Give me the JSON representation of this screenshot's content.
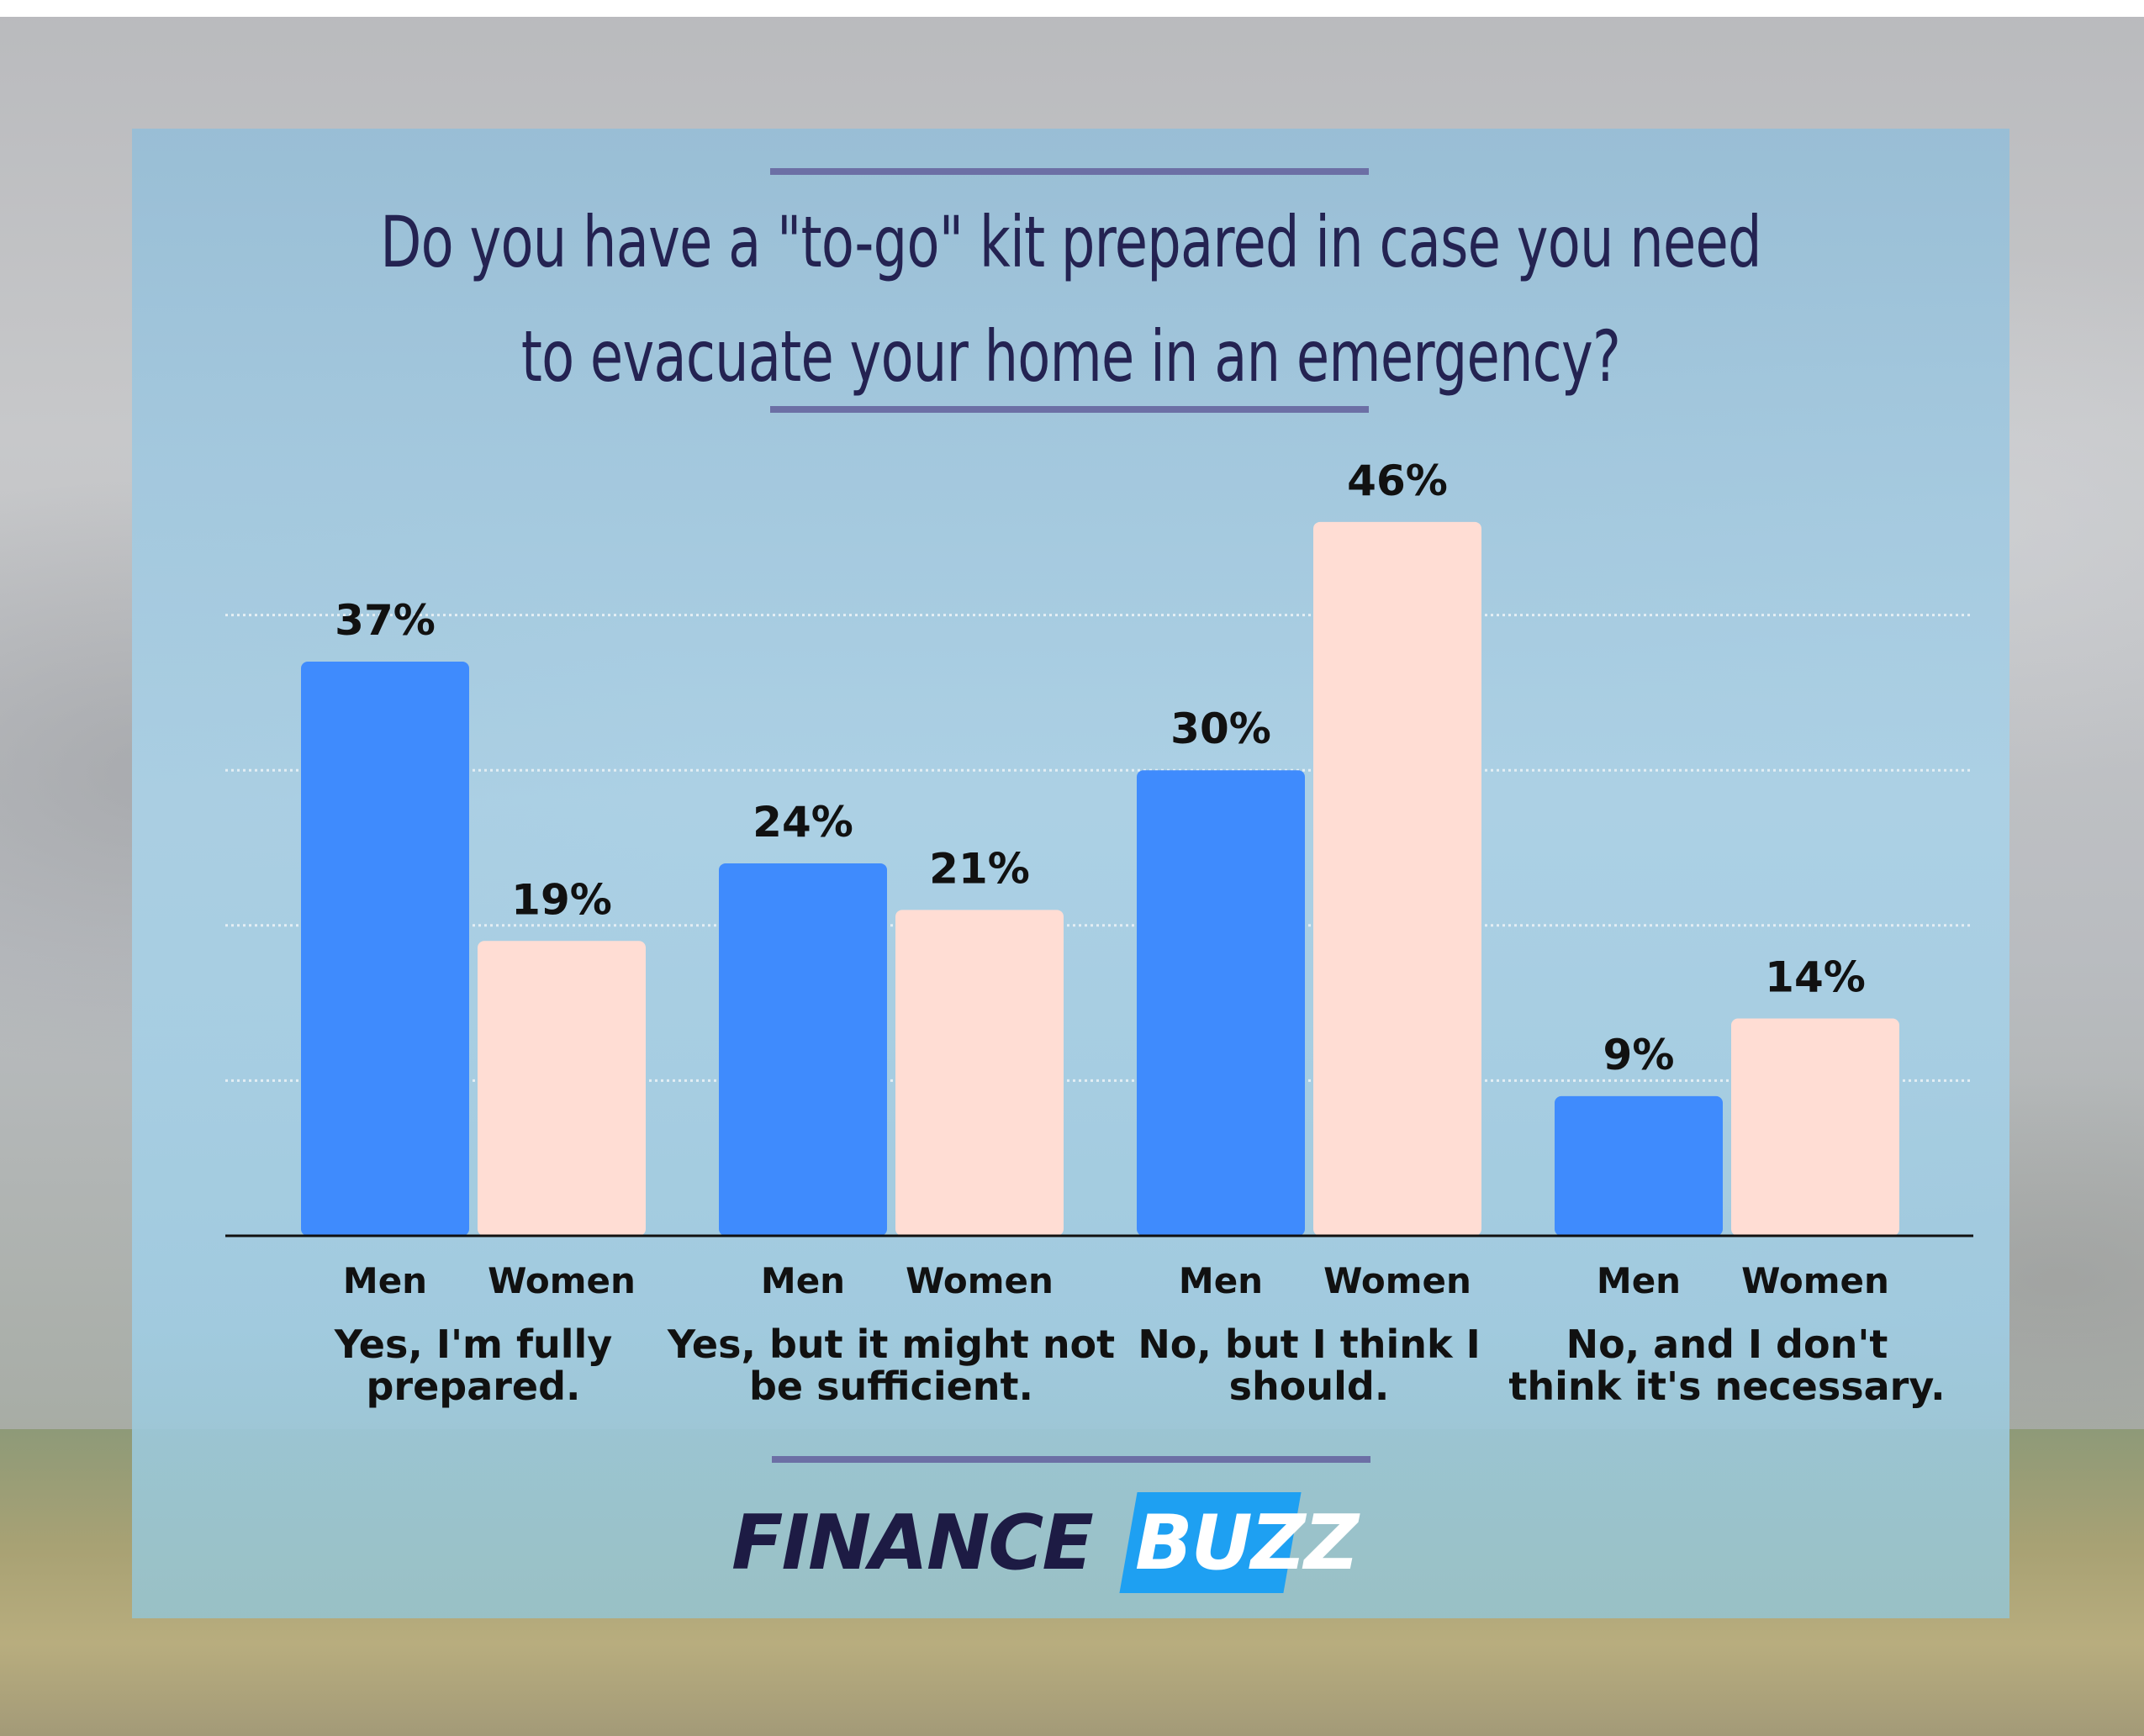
{
  "header": {
    "title": "Do you have a \"to-go\" kit prepared in case you need to evacuate your home in an emergency?"
  },
  "logo": {
    "part1": "FINANCE",
    "part2": "BUZZ"
  },
  "colors": {
    "men": "#3f8bfd",
    "women": "#ffddd4",
    "title": "#242352",
    "accent_rule": "#6c6fa5",
    "logo_blue": "#1ea0f2"
  },
  "chart_data": {
    "type": "bar",
    "title": "",
    "xlabel": "",
    "ylabel": "",
    "ylim": [
      0,
      50
    ],
    "grid": true,
    "categories": [
      "Yes, I'm fully prepared.",
      "Yes, but it might not be sufficient.",
      "No, but I think I should.",
      "No, and I don't think it's necessary."
    ],
    "category_lines": [
      [
        "Yes, I'm fully",
        "prepared."
      ],
      [
        "Yes, but it might not",
        "be sufficient."
      ],
      [
        "No, but I think I",
        "should."
      ],
      [
        "No, and I don't",
        "think it's necessary."
      ]
    ],
    "series": [
      {
        "name": "Men",
        "values": [
          37,
          24,
          30,
          9
        ],
        "labels": [
          "37%",
          "24%",
          "30%",
          "9%"
        ]
      },
      {
        "name": "Women",
        "values": [
          19,
          21,
          46,
          14
        ],
        "labels": [
          "19%",
          "21%",
          "46%",
          "14%"
        ]
      }
    ]
  }
}
